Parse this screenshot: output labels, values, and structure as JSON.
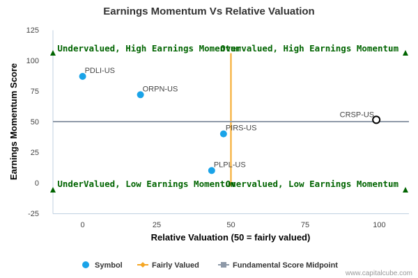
{
  "chart_data": {
    "type": "scatter",
    "title": "Earnings Momentum Vs Relative Valuation",
    "xlabel": "Relative Valuation (50 = fairly valued)",
    "ylabel": "Earnings Momentum Score",
    "xlim": [
      -10,
      110
    ],
    "ylim": [
      -25,
      125
    ],
    "xticks": [
      0,
      25,
      50,
      75,
      100
    ],
    "yticks": [
      -25,
      0,
      25,
      50,
      75,
      100,
      125
    ],
    "grid": false,
    "legend_position": "bottom",
    "points": [
      {
        "label": "PDLI-US",
        "x": 0,
        "y": 87,
        "style": "filled",
        "color": "#1aa3e8"
      },
      {
        "label": "ORPN-US",
        "x": 19.5,
        "y": 72,
        "style": "filled",
        "color": "#1aa3e8"
      },
      {
        "label": "PIRS-US",
        "x": 47.5,
        "y": 40,
        "style": "filled",
        "color": "#1aa3e8"
      },
      {
        "label": "PLPL-US",
        "x": 43.5,
        "y": 10,
        "style": "filled",
        "color": "#1aa3e8"
      },
      {
        "label": "CRSP-US",
        "x": 99,
        "y": 51.5,
        "style": "open",
        "color": "#000000"
      }
    ],
    "reference_lines": {
      "fairly_valued_x": 50,
      "fairly_valued_y_range": [
        -3,
        106
      ],
      "fairly_valued_color": "#f5a623",
      "midpoint_y": 50,
      "midpoint_color": "#8e99a8"
    },
    "quadrant_labels": {
      "top_left": "Undervalued, High Earnings Momentum",
      "top_right": "Overvalued, High Earnings Momentum",
      "bottom_left": "UnderValued, Low Earnings Momentum",
      "bottom_right": "Overvalued, Low Earnings Momentum",
      "color": "#006400"
    },
    "legend": [
      {
        "name": "Symbol",
        "color": "#1aa3e8",
        "marker": "circle"
      },
      {
        "name": "Fairly Valued",
        "color": "#f5a623",
        "marker": "line-diamond"
      },
      {
        "name": "Fundamental Score Midpoint",
        "color": "#8e99a8",
        "marker": "line-square"
      }
    ]
  },
  "credit": "www.capitalcube.com"
}
